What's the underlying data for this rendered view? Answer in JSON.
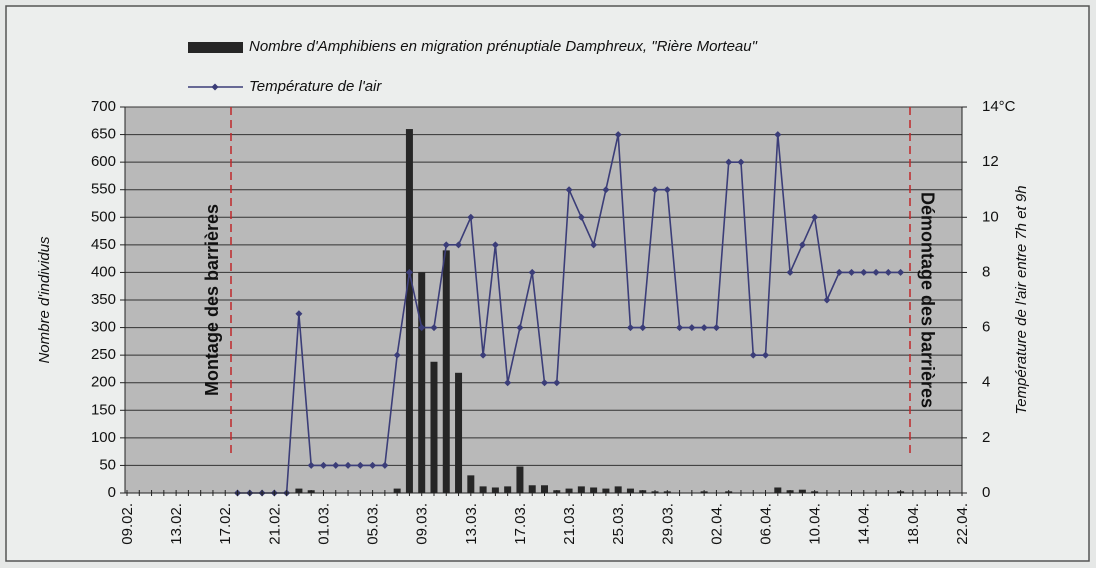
{
  "chart_data": {
    "type": "bar",
    "legend": "top",
    "grid": true,
    "y_label": "Nombre d'individus",
    "y2_label": "Température de l'air entre 7h et 9h",
    "annotations": [
      "Montage des barrières",
      "Démontage des barrières"
    ],
    "categories": [
      "09.02.",
      null,
      null,
      null,
      "13.02.",
      null,
      null,
      null,
      "17.02.",
      null,
      null,
      null,
      "21.02.",
      null,
      null,
      null,
      "01.03.",
      null,
      null,
      null,
      "05.03.",
      null,
      null,
      null,
      "09.03.",
      null,
      null,
      null,
      "13.03.",
      null,
      null,
      null,
      "17.03.",
      null,
      null,
      null,
      "21.03.",
      null,
      null,
      null,
      "25.03.",
      null,
      null,
      null,
      "29.03.",
      null,
      null,
      null,
      "02.04.",
      null,
      null,
      null,
      "06.04.",
      null,
      null,
      null,
      "10.04.",
      null,
      null,
      null,
      "14.04.",
      null,
      null,
      null,
      "18.04.",
      null,
      null,
      null,
      "22.04."
    ],
    "ylim": [
      0,
      700
    ],
    "yticks": [
      0,
      50,
      100,
      150,
      200,
      250,
      300,
      350,
      400,
      450,
      500,
      550,
      600,
      650,
      700
    ],
    "y2lim": [
      0,
      14
    ],
    "y2ticks": [
      0,
      2,
      4,
      6,
      8,
      10,
      12,
      {
        "value": 14,
        "label": "14°C"
      }
    ],
    "series": [
      {
        "name": "Nombre d'Amphibiens en migration prénuptiale Damphreux, \"Rière Morteau\"",
        "type": "bar",
        "color": "#262626",
        "values": [
          null,
          null,
          null,
          null,
          null,
          null,
          null,
          null,
          null,
          0,
          0,
          0,
          0,
          0,
          8,
          5,
          0,
          0,
          0,
          0,
          0,
          0,
          8,
          660,
          400,
          238,
          440,
          218,
          32,
          12,
          10,
          12,
          48,
          14,
          14,
          5,
          8,
          12,
          10,
          8,
          12,
          8,
          5,
          3,
          3,
          0,
          0,
          3,
          0,
          3,
          0,
          0,
          0,
          10,
          5,
          6,
          3,
          0,
          0,
          0,
          0,
          0,
          0,
          3,
          null,
          null,
          null,
          null,
          null
        ]
      },
      {
        "name": "Température de l'air",
        "type": "line",
        "axis": "y2",
        "color": "#3b3d78",
        "values": [
          null,
          null,
          null,
          null,
          null,
          null,
          null,
          null,
          null,
          0,
          0,
          0,
          0,
          0,
          6.5,
          1,
          1,
          1,
          1,
          1,
          1,
          1,
          5,
          8,
          6,
          6,
          9,
          9,
          10,
          5,
          9,
          4,
          6,
          8,
          4,
          4,
          11,
          10,
          9,
          11,
          13,
          6,
          6,
          11,
          11,
          6,
          6,
          6,
          6,
          12,
          12,
          5,
          5,
          13,
          8,
          9,
          10,
          7,
          8,
          8,
          8,
          8,
          8,
          8,
          null,
          null,
          null,
          null,
          null
        ]
      }
    ]
  }
}
